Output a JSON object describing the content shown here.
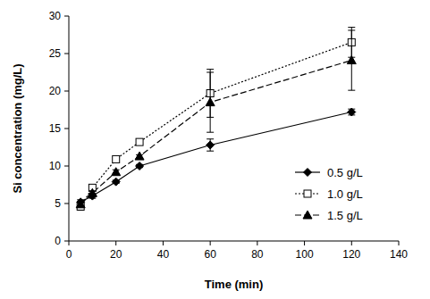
{
  "chart_data": {
    "type": "line",
    "x_label": "Time (min)",
    "y_label": "Si concentration (mg/L)",
    "x": [
      5,
      10,
      20,
      30,
      60,
      120
    ],
    "series": [
      {
        "name": "0.5 g/L",
        "color": "#000000",
        "marker": "diamond",
        "line_style": "solid",
        "values": [
          5.2,
          6.0,
          7.9,
          10.0,
          12.8,
          17.2
        ],
        "errors": [
          0.3,
          0.3,
          0.2,
          0.2,
          0.8,
          0.4
        ]
      },
      {
        "name": "1.0 g/L",
        "color": "#000000",
        "marker": "open-square",
        "line_style": "dotted",
        "values": [
          4.6,
          7.1,
          10.9,
          13.2,
          19.7,
          26.5
        ],
        "errors": [
          0.5,
          0.3,
          0.2,
          0.2,
          3.2,
          2.0
        ]
      },
      {
        "name": "1.5 g/L",
        "color": "#000000",
        "marker": "triangle",
        "line_style": "dashed",
        "values": [
          4.9,
          6.4,
          9.2,
          11.3,
          18.5,
          24.1
        ],
        "errors": [
          0.4,
          0.3,
          0.3,
          0.2,
          4.0,
          4.0
        ]
      }
    ],
    "xlim": [
      0,
      140
    ],
    "xticks": [
      0,
      20,
      40,
      60,
      80,
      100,
      120,
      140
    ],
    "ylim": [
      0,
      30
    ],
    "yticks": [
      0,
      5,
      10,
      15,
      20,
      25,
      30
    ],
    "grid": false,
    "legend": "right"
  }
}
